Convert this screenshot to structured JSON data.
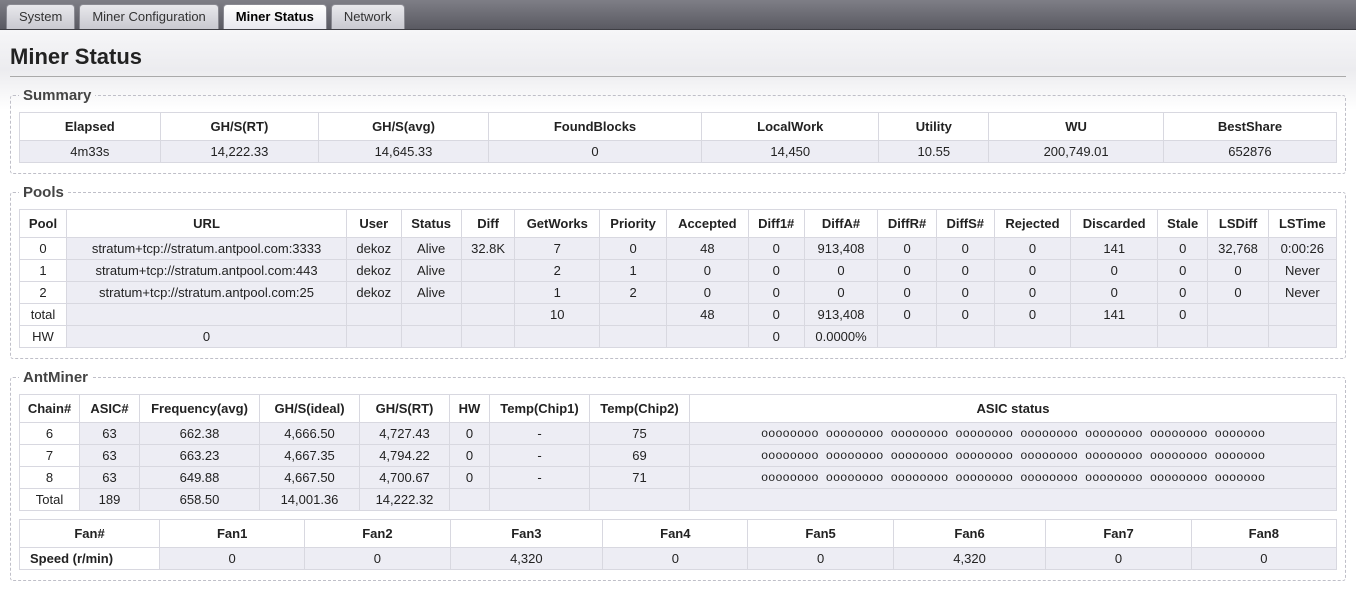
{
  "tabs": {
    "system": "System",
    "miner_config": "Miner Configuration",
    "miner_status": "Miner Status",
    "network": "Network"
  },
  "page_title": "Miner Status",
  "summary": {
    "legend": "Summary",
    "headers": {
      "elapsed": "Elapsed",
      "ghs_rt": "GH/S(RT)",
      "ghs_avg": "GH/S(avg)",
      "found_blocks": "FoundBlocks",
      "local_work": "LocalWork",
      "utility": "Utility",
      "wu": "WU",
      "best_share": "BestShare"
    },
    "values": {
      "elapsed": "4m33s",
      "ghs_rt": "14,222.33",
      "ghs_avg": "14,645.33",
      "found_blocks": "0",
      "local_work": "14,450",
      "utility": "10.55",
      "wu": "200,749.01",
      "best_share": "652876"
    }
  },
  "pools": {
    "legend": "Pools",
    "headers": {
      "pool": "Pool",
      "url": "URL",
      "user": "User",
      "status": "Status",
      "diff": "Diff",
      "getworks": "GetWorks",
      "priority": "Priority",
      "accepted": "Accepted",
      "diff1": "Diff1#",
      "diffa": "DiffA#",
      "diffr": "DiffR#",
      "diffs": "DiffS#",
      "rejected": "Rejected",
      "discarded": "Discarded",
      "stale": "Stale",
      "lsdiff": "LSDiff",
      "lstime": "LSTime"
    },
    "rows": [
      {
        "pool": "0",
        "url": "stratum+tcp://stratum.antpool.com:3333",
        "user": "dekoz",
        "status": "Alive",
        "diff": "32.8K",
        "getworks": "7",
        "priority": "0",
        "accepted": "48",
        "diff1": "0",
        "diffa": "913,408",
        "diffr": "0",
        "diffs": "0",
        "rejected": "0",
        "discarded": "141",
        "stale": "0",
        "lsdiff": "32,768",
        "lstime": "0:00:26"
      },
      {
        "pool": "1",
        "url": "stratum+tcp://stratum.antpool.com:443",
        "user": "dekoz",
        "status": "Alive",
        "diff": "",
        "getworks": "2",
        "priority": "1",
        "accepted": "0",
        "diff1": "0",
        "diffa": "0",
        "diffr": "0",
        "diffs": "0",
        "rejected": "0",
        "discarded": "0",
        "stale": "0",
        "lsdiff": "0",
        "lstime": "Never"
      },
      {
        "pool": "2",
        "url": "stratum+tcp://stratum.antpool.com:25",
        "user": "dekoz",
        "status": "Alive",
        "diff": "",
        "getworks": "1",
        "priority": "2",
        "accepted": "0",
        "diff1": "0",
        "diffa": "0",
        "diffr": "0",
        "diffs": "0",
        "rejected": "0",
        "discarded": "0",
        "stale": "0",
        "lsdiff": "0",
        "lstime": "Never"
      }
    ],
    "total_label": "total",
    "total": {
      "getworks": "10",
      "accepted": "48",
      "diff1": "0",
      "diffa": "913,408",
      "diffr": "0",
      "diffs": "0",
      "rejected": "0",
      "discarded": "141",
      "stale": "0"
    },
    "hw_label": "HW",
    "hw": {
      "url": "0",
      "diff1": "0",
      "diffa": "0.0000%"
    }
  },
  "antminer": {
    "legend": "AntMiner",
    "headers": {
      "chain": "Chain#",
      "asic": "ASIC#",
      "freq": "Frequency(avg)",
      "ghs_ideal": "GH/S(ideal)",
      "ghs_rt": "GH/S(RT)",
      "hw": "HW",
      "temp1": "Temp(Chip1)",
      "temp2": "Temp(Chip2)",
      "status": "ASIC status"
    },
    "rows": [
      {
        "chain": "6",
        "asic": "63",
        "freq": "662.38",
        "ghs_ideal": "4,666.50",
        "ghs_rt": "4,727.43",
        "hw": "0",
        "temp1": "-",
        "temp2": "75",
        "status": "oooooooo oooooooo oooooooo oooooooo oooooooo oooooooo oooooooo ooooooo"
      },
      {
        "chain": "7",
        "asic": "63",
        "freq": "663.23",
        "ghs_ideal": "4,667.35",
        "ghs_rt": "4,794.22",
        "hw": "0",
        "temp1": "-",
        "temp2": "69",
        "status": "oooooooo oooooooo oooooooo oooooooo oooooooo oooooooo oooooooo ooooooo"
      },
      {
        "chain": "8",
        "asic": "63",
        "freq": "649.88",
        "ghs_ideal": "4,667.50",
        "ghs_rt": "4,700.67",
        "hw": "0",
        "temp1": "-",
        "temp2": "71",
        "status": "oooooooo oooooooo oooooooo oooooooo oooooooo oooooooo oooooooo ooooooo"
      }
    ],
    "total_label": "Total",
    "total": {
      "asic": "189",
      "freq": "658.50",
      "ghs_ideal": "14,001.36",
      "ghs_rt": "14,222.32"
    },
    "fans": {
      "header_label": "Fan#",
      "speed_label": "Speed (r/min)",
      "labels": [
        "Fan1",
        "Fan2",
        "Fan3",
        "Fan4",
        "Fan5",
        "Fan6",
        "Fan7",
        "Fan8"
      ],
      "speeds": [
        "0",
        "0",
        "4,320",
        "0",
        "0",
        "4,320",
        "0",
        "0"
      ]
    }
  }
}
